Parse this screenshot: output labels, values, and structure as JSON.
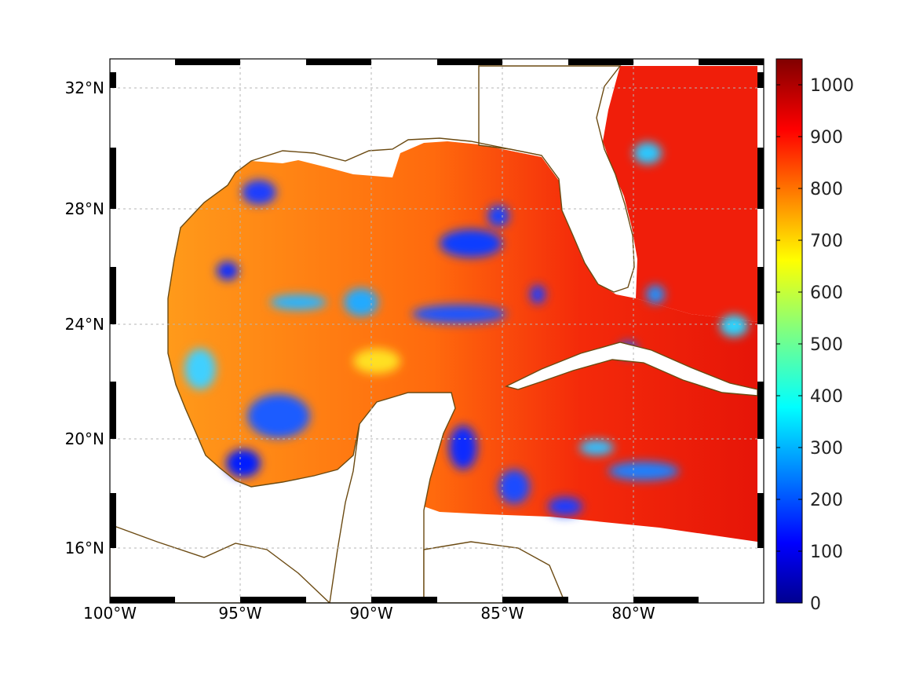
{
  "map": {
    "x_ticks": [
      "100°W",
      "95°W",
      "90°W",
      "85°W",
      "80°W"
    ],
    "y_ticks": [
      "32°N",
      "28°N",
      "24°N",
      "20°N",
      "16°N"
    ],
    "colorbar": {
      "ticks": [
        "1000",
        "900",
        "800",
        "700",
        "600",
        "500",
        "400",
        "300",
        "200",
        "100",
        "0"
      ],
      "range": [
        0,
        1050
      ],
      "colormap": "jet"
    },
    "colors": {
      "coastline": "#6b4a12",
      "gridline": "#b5b5b5",
      "field_low": "#00008f",
      "field_high": "#800000"
    }
  }
}
